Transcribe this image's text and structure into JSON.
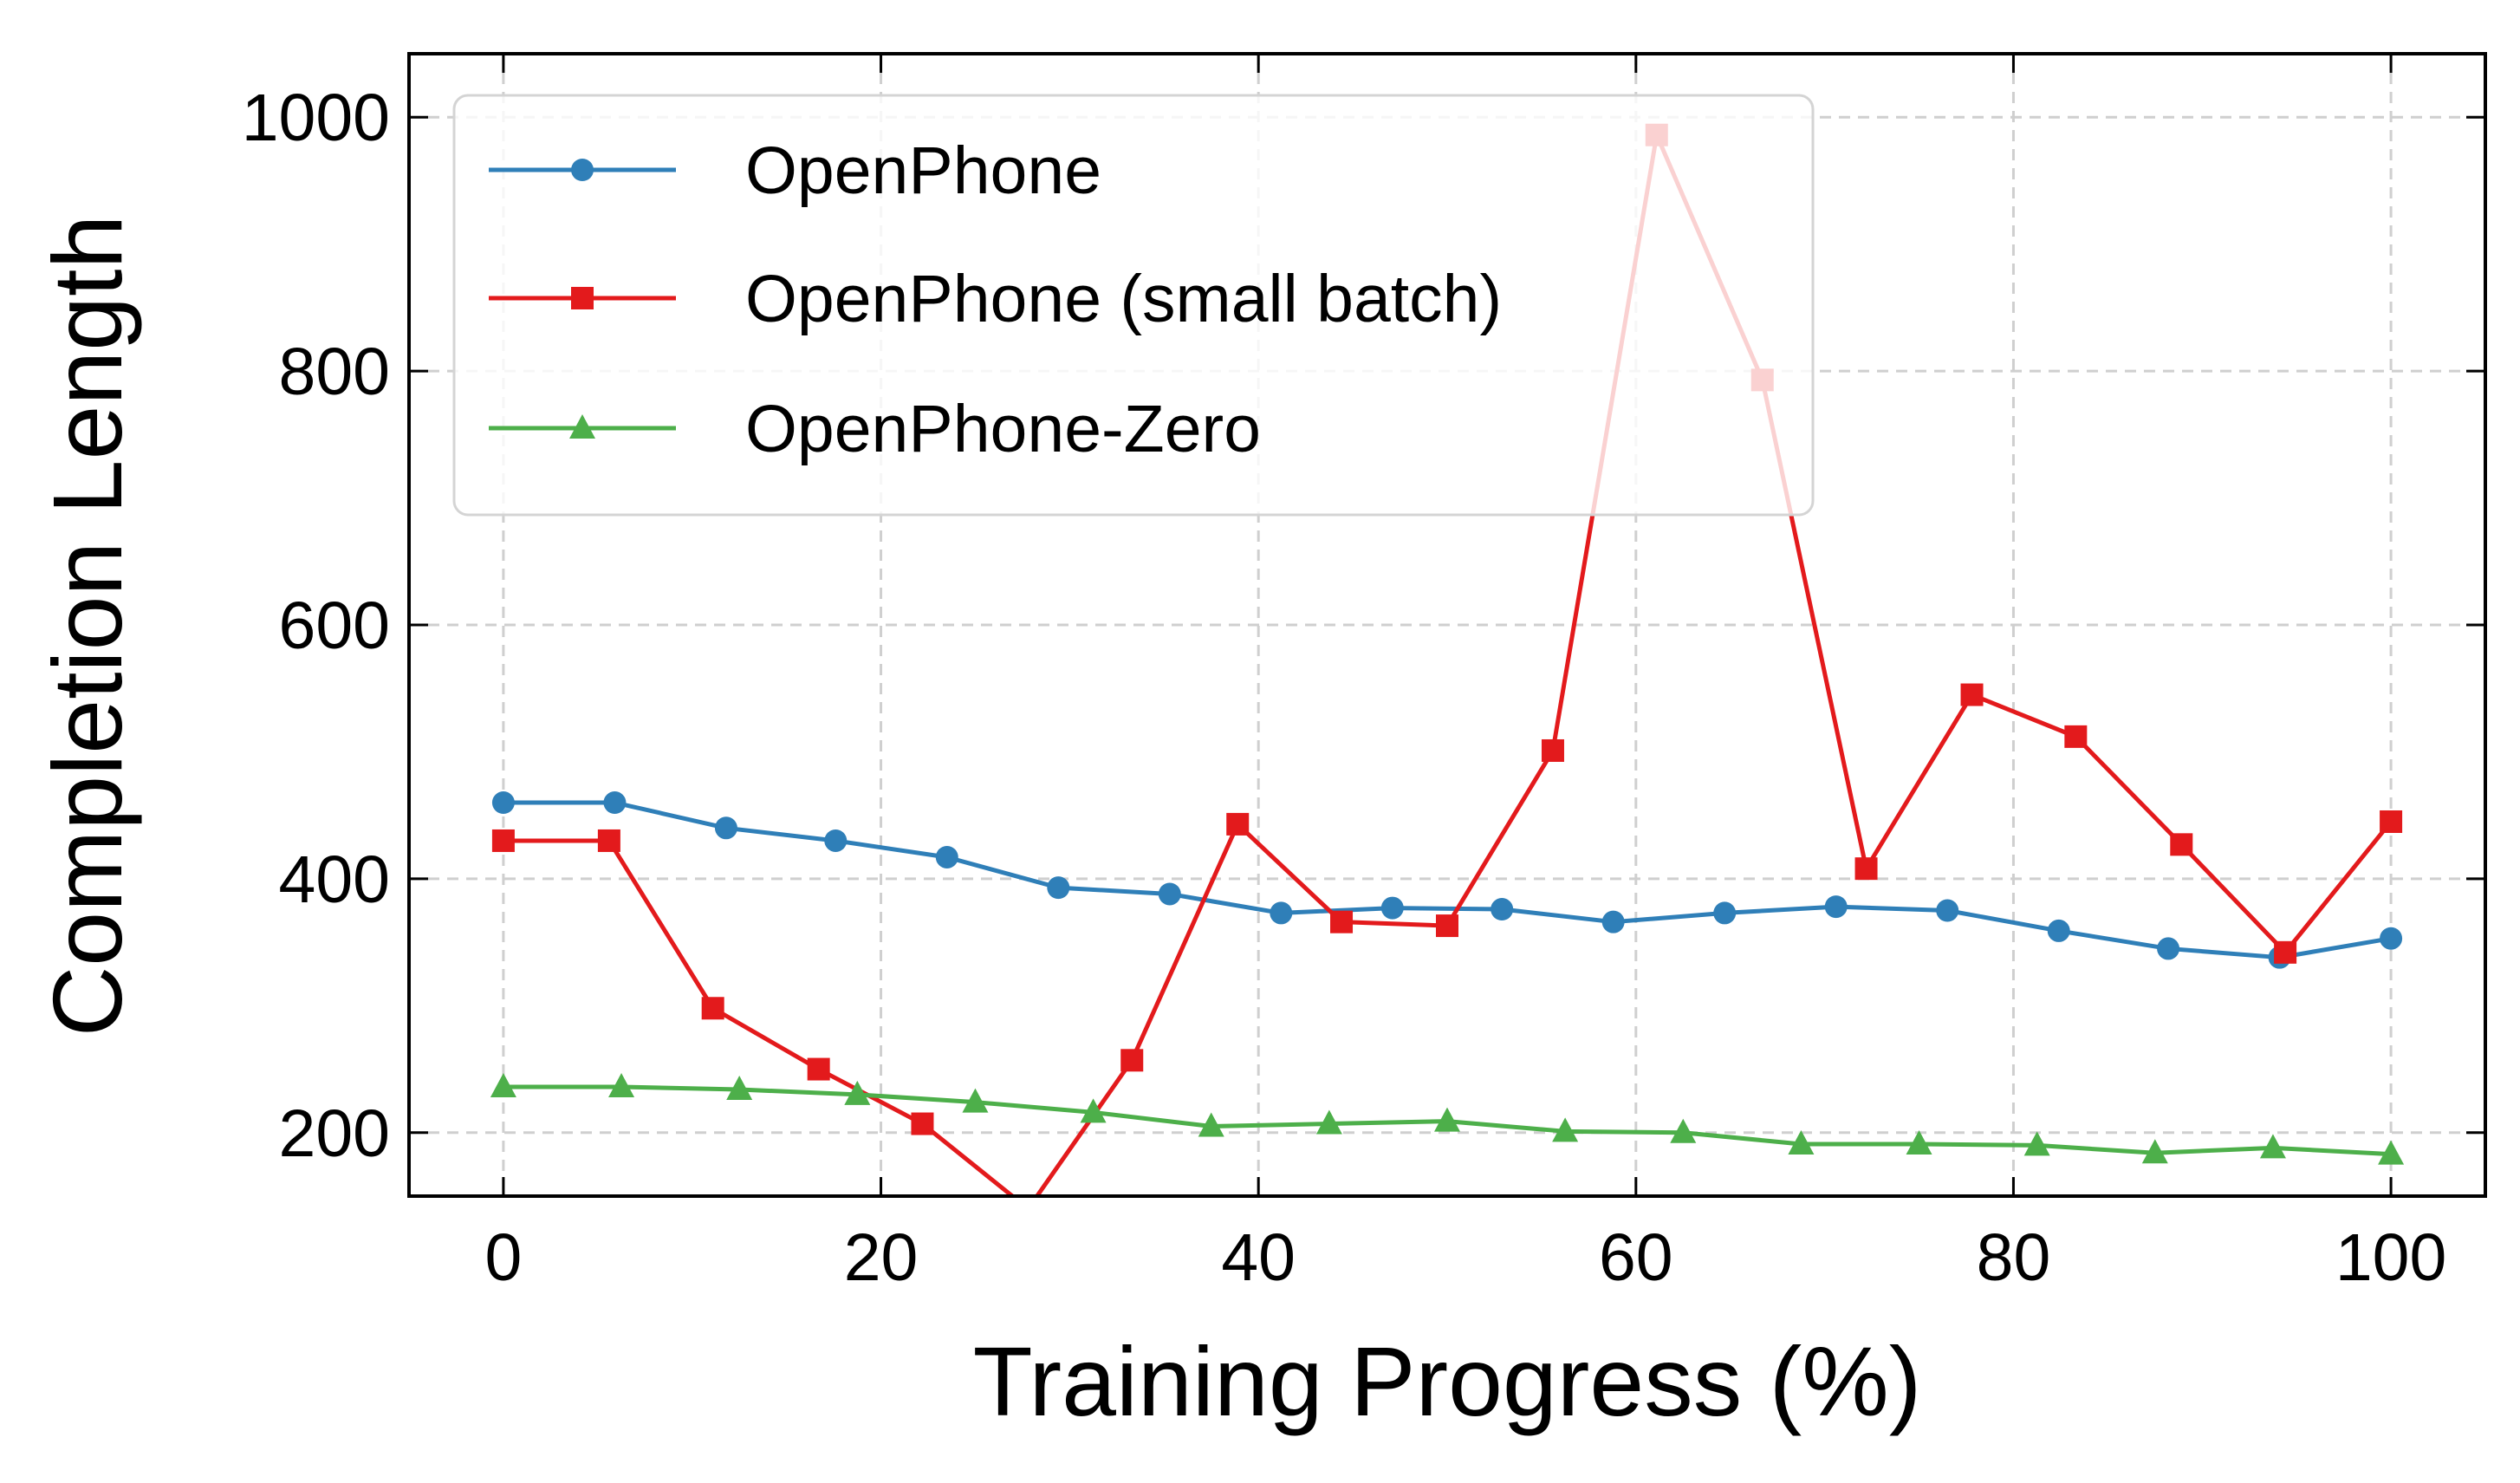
{
  "chart_data": {
    "type": "line",
    "title": "",
    "xlabel": "Training Progress (%)",
    "ylabel": "Completion Length",
    "xlim": [
      -5,
      105
    ],
    "ylim": [
      150,
      1050
    ],
    "xticks": [
      0,
      20,
      40,
      60,
      80,
      100
    ],
    "yticks": [
      200,
      400,
      600,
      800,
      1000
    ],
    "grid": true,
    "legend_position": "top-left",
    "series": [
      {
        "name": "OpenPhone",
        "color": "#2f7fb8",
        "marker": "circle",
        "x": [
          0,
          5.9,
          11.8,
          17.6,
          23.5,
          29.4,
          35.3,
          41.2,
          47.1,
          52.9,
          58.8,
          64.7,
          70.6,
          76.5,
          82.4,
          88.2,
          94.1,
          100
        ],
        "y": [
          460,
          460,
          440,
          430,
          417,
          393,
          388,
          373,
          377,
          376,
          366,
          373,
          378,
          375,
          359,
          345,
          338,
          353
        ]
      },
      {
        "name": "OpenPhone (small batch)",
        "color": "#e31a1c",
        "marker": "square",
        "x": [
          0,
          5.6,
          11.1,
          16.7,
          22.2,
          27.8,
          33.3,
          38.9,
          44.4,
          50.0,
          55.6,
          61.1,
          66.7,
          72.2,
          77.8,
          83.3,
          88.9,
          94.4,
          100
        ],
        "y": [
          430,
          430,
          298,
          250,
          207,
          140,
          257,
          443,
          366,
          363,
          501,
          986,
          793,
          408,
          545,
          512,
          427,
          342,
          445
        ]
      },
      {
        "name": "OpenPhone-Zero",
        "color": "#4daf4a",
        "marker": "triangle",
        "x": [
          0,
          6.25,
          12.5,
          18.75,
          25,
          31.25,
          37.5,
          43.75,
          50,
          56.25,
          62.5,
          68.75,
          75,
          81.25,
          87.5,
          93.75,
          100
        ],
        "y": [
          236,
          236,
          234,
          230,
          224,
          216,
          205,
          207,
          209,
          201,
          200,
          191,
          191,
          190,
          184,
          188,
          183
        ]
      }
    ]
  }
}
